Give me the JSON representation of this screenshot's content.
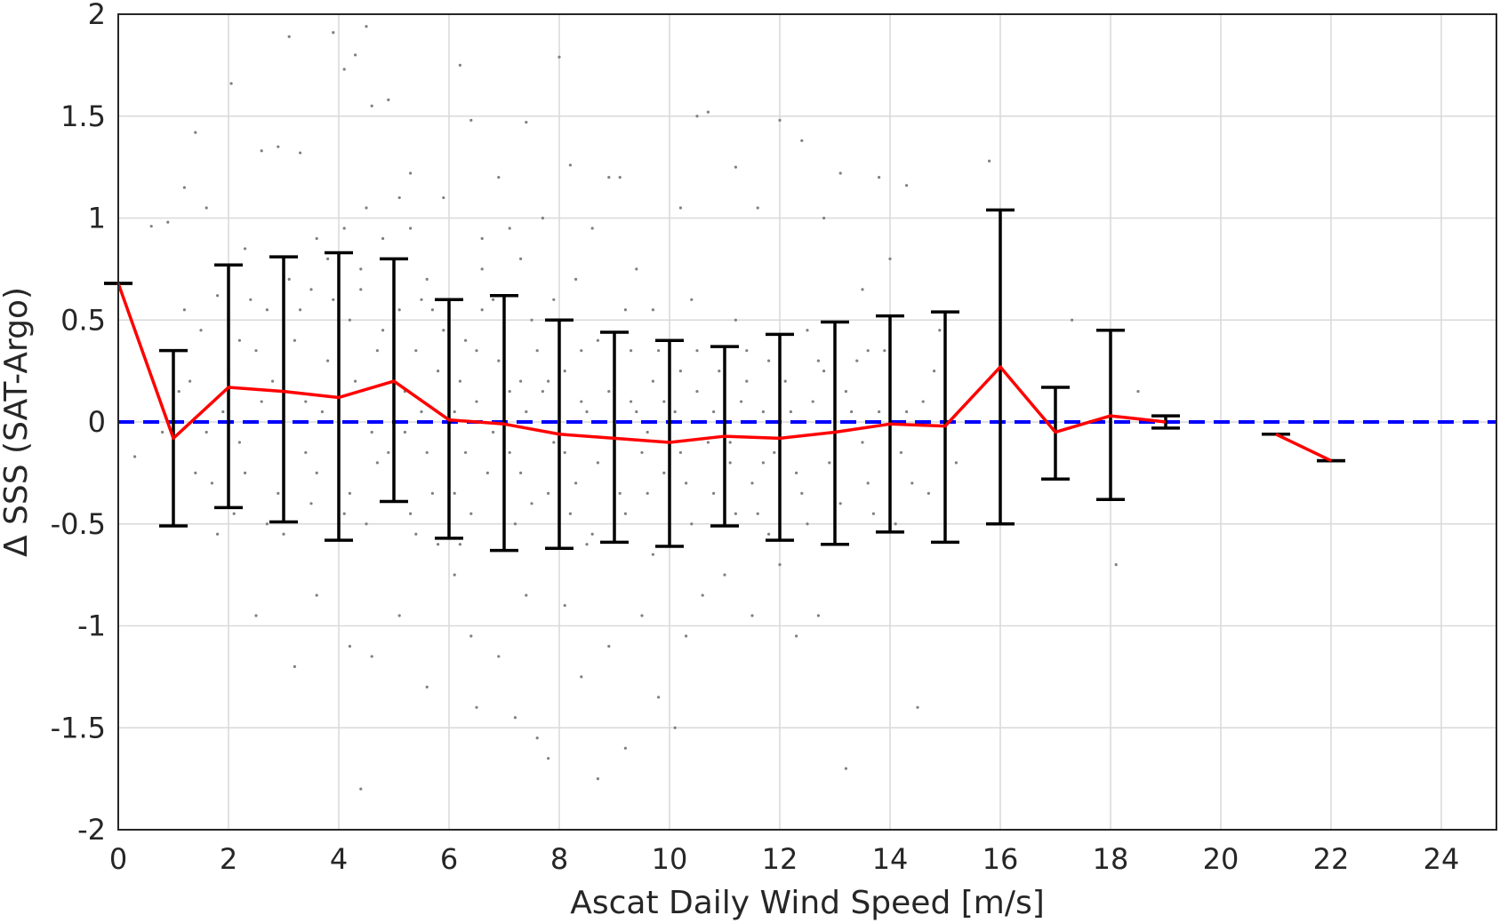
{
  "chart_data": {
    "type": "scatter",
    "xlabel": "Ascat Daily Wind Speed [m/s]",
    "ylabel": "Δ SSS (SAT-Argo)",
    "xlim": [
      0,
      25
    ],
    "ylim": [
      -2,
      2
    ],
    "xticks": [
      "0",
      "2",
      "4",
      "6",
      "8",
      "10",
      "12",
      "14",
      "16",
      "18",
      "20",
      "22",
      "24"
    ],
    "xtick_values": [
      0,
      2,
      4,
      6,
      8,
      10,
      12,
      14,
      16,
      18,
      20,
      22,
      24
    ],
    "yticks": [
      "2",
      "1.5",
      "1",
      "0.5",
      "0",
      "-0.5",
      "-1",
      "-1.5",
      "-2"
    ],
    "ytick_values": [
      2,
      1.5,
      1,
      0.5,
      0,
      -0.5,
      -1,
      -1.5,
      -2
    ],
    "grid": true,
    "reference_line": {
      "y": 0,
      "color": "#0000ff",
      "style": "dashed"
    },
    "scatter_color": "#808080",
    "mean_line_color": "#ff0000",
    "errorbar_color": "#000000",
    "series": [
      {
        "kind": "mean-with-errorbars",
        "segments": [
          [
            [
              0,
              0.68
            ],
            [
              1,
              -0.08
            ],
            [
              2,
              0.17
            ],
            [
              3,
              0.15
            ],
            [
              4,
              0.12
            ],
            [
              5,
              0.2
            ],
            [
              6,
              0.01
            ],
            [
              7,
              -0.01
            ],
            [
              8,
              -0.06
            ],
            [
              9,
              -0.08
            ],
            [
              10,
              -0.1
            ],
            [
              11,
              -0.07
            ],
            [
              12,
              -0.08
            ],
            [
              13,
              -0.05
            ],
            [
              14,
              -0.01
            ],
            [
              15,
              -0.02
            ],
            [
              16,
              0.27
            ],
            [
              17,
              -0.05
            ],
            [
              18,
              0.03
            ],
            [
              19,
              0.0
            ]
          ],
          [
            [
              21,
              -0.06
            ],
            [
              22,
              -0.19
            ]
          ]
        ],
        "errorbars": [
          {
            "x": 0,
            "lo": 0.68,
            "hi": 0.68
          },
          {
            "x": 1,
            "lo": -0.51,
            "hi": 0.35
          },
          {
            "x": 2,
            "lo": -0.42,
            "hi": 0.77
          },
          {
            "x": 3,
            "lo": -0.49,
            "hi": 0.81
          },
          {
            "x": 4,
            "lo": -0.58,
            "hi": 0.83
          },
          {
            "x": 5,
            "lo": -0.39,
            "hi": 0.8
          },
          {
            "x": 6,
            "lo": -0.57,
            "hi": 0.6
          },
          {
            "x": 7,
            "lo": -0.63,
            "hi": 0.62
          },
          {
            "x": 8,
            "lo": -0.62,
            "hi": 0.5
          },
          {
            "x": 9,
            "lo": -0.59,
            "hi": 0.44
          },
          {
            "x": 10,
            "lo": -0.61,
            "hi": 0.4
          },
          {
            "x": 11,
            "lo": -0.51,
            "hi": 0.37
          },
          {
            "x": 12,
            "lo": -0.58,
            "hi": 0.43
          },
          {
            "x": 13,
            "lo": -0.6,
            "hi": 0.49
          },
          {
            "x": 14,
            "lo": -0.54,
            "hi": 0.52
          },
          {
            "x": 15,
            "lo": -0.59,
            "hi": 0.54
          },
          {
            "x": 16,
            "lo": -0.5,
            "hi": 1.04
          },
          {
            "x": 17,
            "lo": -0.28,
            "hi": 0.17
          },
          {
            "x": 18,
            "lo": -0.38,
            "hi": 0.45
          },
          {
            "x": 19,
            "lo": -0.03,
            "hi": 0.03
          },
          {
            "x": 21,
            "lo": -0.06,
            "hi": -0.06
          },
          {
            "x": 22,
            "lo": -0.19,
            "hi": -0.19
          }
        ]
      }
    ],
    "scatter_points": [
      [
        0.3,
        -0.17
      ],
      [
        0.6,
        0.96
      ],
      [
        0.9,
        0.98
      ],
      [
        1.2,
        1.15
      ],
      [
        1.4,
        1.42
      ],
      [
        1.6,
        1.05
      ],
      [
        1.8,
        0.62
      ],
      [
        2.05,
        1.66
      ],
      [
        2.3,
        0.85
      ],
      [
        2.6,
        1.33
      ],
      [
        2.9,
        1.35
      ],
      [
        3.1,
        1.89
      ],
      [
        3.3,
        1.32
      ],
      [
        3.6,
        0.9
      ],
      [
        3.9,
        1.91
      ],
      [
        4.1,
        1.73
      ],
      [
        4.3,
        1.8
      ],
      [
        4.5,
        1.94
      ],
      [
        4.6,
        1.55
      ],
      [
        4.9,
        1.58
      ],
      [
        5.1,
        1.1
      ],
      [
        5.3,
        1.22
      ],
      [
        5.6,
        0.7
      ],
      [
        5.9,
        1.1
      ],
      [
        6.2,
        1.75
      ],
      [
        6.4,
        1.48
      ],
      [
        6.6,
        0.9
      ],
      [
        6.9,
        1.2
      ],
      [
        7.1,
        0.95
      ],
      [
        7.4,
        1.47
      ],
      [
        7.7,
        1.0
      ],
      [
        8.0,
        1.79
      ],
      [
        8.2,
        1.26
      ],
      [
        8.6,
        0.95
      ],
      [
        8.9,
        1.2
      ],
      [
        9.1,
        1.2
      ],
      [
        9.4,
        0.75
      ],
      [
        9.7,
        0.55
      ],
      [
        10.2,
        1.05
      ],
      [
        10.5,
        1.5
      ],
      [
        10.7,
        1.52
      ],
      [
        11.2,
        1.25
      ],
      [
        11.6,
        1.05
      ],
      [
        12.0,
        1.48
      ],
      [
        12.4,
        1.38
      ],
      [
        12.8,
        1.0
      ],
      [
        13.1,
        1.22
      ],
      [
        13.5,
        0.65
      ],
      [
        13.8,
        1.2
      ],
      [
        14.0,
        0.8
      ],
      [
        14.3,
        1.16
      ],
      [
        15.8,
        1.28
      ],
      [
        17.3,
        0.5
      ],
      [
        18.5,
        0.15
      ],
      [
        1.3,
        0.2
      ],
      [
        1.5,
        0.45
      ],
      [
        1.7,
        -0.3
      ],
      [
        2.2,
        -0.1
      ],
      [
        2.5,
        0.35
      ],
      [
        2.7,
        0.55
      ],
      [
        2.9,
        -0.35
      ],
      [
        3.2,
        0.4
      ],
      [
        3.4,
        0.1
      ],
      [
        3.6,
        -0.25
      ],
      [
        3.8,
        0.3
      ],
      [
        4.0,
        -0.2
      ],
      [
        4.2,
        0.5
      ],
      [
        4.4,
        0.65
      ],
      [
        4.6,
        -0.05
      ],
      [
        4.8,
        0.45
      ],
      [
        5.0,
        -0.3
      ],
      [
        5.2,
        0.15
      ],
      [
        5.4,
        0.35
      ],
      [
        5.6,
        -0.15
      ],
      [
        5.8,
        0.25
      ],
      [
        6.1,
        -0.35
      ],
      [
        6.3,
        0.4
      ],
      [
        6.5,
        0.1
      ],
      [
        6.7,
        -0.25
      ],
      [
        6.9,
        0.3
      ],
      [
        7.1,
        -0.15
      ],
      [
        7.3,
        0.2
      ],
      [
        7.5,
        -0.4
      ],
      [
        7.7,
        0.15
      ],
      [
        7.9,
        -0.1
      ],
      [
        8.1,
        0.25
      ],
      [
        8.3,
        -0.3
      ],
      [
        8.5,
        0.05
      ],
      [
        8.7,
        -0.2
      ],
      [
        8.9,
        0.15
      ],
      [
        9.1,
        -0.35
      ],
      [
        9.3,
        0.1
      ],
      [
        9.5,
        -0.15
      ],
      [
        9.7,
        0.2
      ],
      [
        9.9,
        -0.25
      ],
      [
        10.1,
        0.05
      ],
      [
        10.3,
        -0.3
      ],
      [
        10.5,
        0.15
      ],
      [
        10.7,
        -0.1
      ],
      [
        10.9,
        0.25
      ],
      [
        11.1,
        -0.2
      ],
      [
        11.3,
        0.1
      ],
      [
        11.5,
        -0.3
      ],
      [
        11.7,
        0.05
      ],
      [
        11.9,
        -0.15
      ],
      [
        12.1,
        0.2
      ],
      [
        12.3,
        -0.25
      ],
      [
        12.6,
        0.1
      ],
      [
        12.9,
        -0.2
      ],
      [
        13.2,
        0.15
      ],
      [
        13.5,
        -0.1
      ],
      [
        13.8,
        0.05
      ],
      [
        14.2,
        -0.15
      ],
      [
        14.6,
        0.1
      ],
      [
        1.4,
        -0.25
      ],
      [
        1.9,
        0.05
      ],
      [
        2.1,
        -0.45
      ],
      [
        2.4,
        0.6
      ],
      [
        2.8,
        0.2
      ],
      [
        3.0,
        -0.55
      ],
      [
        3.3,
        0.55
      ],
      [
        3.5,
        -0.4
      ],
      [
        3.7,
        0.05
      ],
      [
        3.9,
        0.6
      ],
      [
        4.1,
        -0.45
      ],
      [
        4.3,
        0.2
      ],
      [
        4.5,
        -0.5
      ],
      [
        4.7,
        0.35
      ],
      [
        4.9,
        -0.15
      ],
      [
        5.1,
        0.55
      ],
      [
        5.3,
        -0.45
      ],
      [
        5.5,
        0.05
      ],
      [
        5.7,
        -0.35
      ],
      [
        5.9,
        0.45
      ],
      [
        6.0,
        -0.55
      ],
      [
        6.2,
        0.2
      ],
      [
        6.4,
        -0.45
      ],
      [
        6.6,
        0.55
      ],
      [
        6.8,
        -0.05
      ],
      [
        7.0,
        0.45
      ],
      [
        7.2,
        -0.5
      ],
      [
        7.4,
        0.05
      ],
      [
        7.6,
        0.35
      ],
      [
        7.8,
        -0.35
      ],
      [
        8.0,
        0.05
      ],
      [
        8.2,
        -0.45
      ],
      [
        8.4,
        0.35
      ],
      [
        8.6,
        -0.55
      ],
      [
        8.8,
        0.0
      ],
      [
        9.0,
        0.3
      ],
      [
        9.2,
        -0.45
      ],
      [
        9.4,
        0.05
      ],
      [
        9.6,
        -0.35
      ],
      [
        9.8,
        0.35
      ],
      [
        10.0,
        -0.45
      ],
      [
        10.2,
        0.25
      ],
      [
        10.4,
        -0.5
      ],
      [
        10.6,
        0.0
      ],
      [
        10.8,
        -0.35
      ],
      [
        11.0,
        0.3
      ],
      [
        11.2,
        -0.45
      ],
      [
        11.4,
        0.2
      ],
      [
        11.6,
        -0.45
      ],
      [
        11.8,
        0.3
      ],
      [
        12.0,
        -0.35
      ],
      [
        12.2,
        0.05
      ],
      [
        12.5,
        -0.5
      ],
      [
        12.8,
        0.25
      ],
      [
        13.1,
        -0.4
      ],
      [
        13.4,
        0.3
      ],
      [
        13.7,
        -0.45
      ],
      [
        14.0,
        0.2
      ],
      [
        14.4,
        -0.3
      ],
      [
        14.8,
        0.25
      ],
      [
        15.2,
        -0.2
      ],
      [
        1.2,
        0.55
      ],
      [
        1.6,
        -0.05
      ],
      [
        2.0,
        0.25
      ],
      [
        2.3,
        -0.25
      ],
      [
        2.6,
        0.1
      ],
      [
        3.1,
        0.7
      ],
      [
        3.4,
        -0.15
      ],
      [
        3.8,
        0.8
      ],
      [
        4.0,
        0.1
      ],
      [
        4.2,
        -0.35
      ],
      [
        4.4,
        0.75
      ],
      [
        4.7,
        -0.2
      ],
      [
        5.0,
        0.75
      ],
      [
        5.2,
        -0.05
      ],
      [
        5.4,
        -0.55
      ],
      [
        5.7,
        0.55
      ],
      [
        6.1,
        0.05
      ],
      [
        6.3,
        -0.15
      ],
      [
        6.5,
        0.35
      ],
      [
        6.8,
        0.6
      ],
      [
        7.1,
        0.15
      ],
      [
        7.3,
        -0.25
      ],
      [
        7.5,
        0.5
      ],
      [
        7.8,
        0.2
      ],
      [
        8.1,
        -0.15
      ],
      [
        8.4,
        0.1
      ],
      [
        8.7,
        0.4
      ],
      [
        9.0,
        -0.1
      ],
      [
        9.3,
        0.35
      ],
      [
        9.6,
        -0.05
      ],
      [
        9.9,
        0.1
      ],
      [
        10.2,
        -0.15
      ],
      [
        10.5,
        0.35
      ],
      [
        10.8,
        0.05
      ],
      [
        11.1,
        -0.1
      ],
      [
        11.4,
        0.35
      ],
      [
        11.7,
        -0.2
      ],
      [
        12.0,
        0.05
      ],
      [
        12.4,
        -0.35
      ],
      [
        12.7,
        0.3
      ],
      [
        13.0,
        -0.1
      ],
      [
        13.3,
        0.05
      ],
      [
        13.6,
        -0.3
      ],
      [
        13.9,
        0.35
      ],
      [
        14.3,
        0.05
      ],
      [
        14.7,
        -0.35
      ],
      [
        2.5,
        -0.95
      ],
      [
        3.2,
        -1.2
      ],
      [
        3.6,
        -0.85
      ],
      [
        4.2,
        -1.1
      ],
      [
        4.4,
        -1.8
      ],
      [
        4.6,
        -1.15
      ],
      [
        5.1,
        -0.95
      ],
      [
        5.6,
        -1.3
      ],
      [
        6.1,
        -0.75
      ],
      [
        6.4,
        -1.05
      ],
      [
        6.5,
        -1.4
      ],
      [
        6.9,
        -1.15
      ],
      [
        7.2,
        -1.45
      ],
      [
        7.4,
        -0.85
      ],
      [
        7.6,
        -1.55
      ],
      [
        7.8,
        -1.65
      ],
      [
        8.1,
        -0.9
      ],
      [
        8.4,
        -1.25
      ],
      [
        8.7,
        -1.75
      ],
      [
        8.9,
        -1.1
      ],
      [
        9.2,
        -1.6
      ],
      [
        9.5,
        -0.95
      ],
      [
        9.8,
        -1.35
      ],
      [
        10.1,
        -1.5
      ],
      [
        10.3,
        -1.05
      ],
      [
        10.6,
        -0.85
      ],
      [
        11.0,
        -0.75
      ],
      [
        11.5,
        -0.95
      ],
      [
        12.0,
        -0.7
      ],
      [
        12.3,
        -1.05
      ],
      [
        12.7,
        -0.95
      ],
      [
        13.2,
        -1.7
      ],
      [
        14.5,
        -1.4
      ],
      [
        18.1,
        -0.7
      ],
      [
        0.8,
        -0.05
      ],
      [
        1.1,
        0.15
      ],
      [
        1.8,
        -0.55
      ],
      [
        2.2,
        0.4
      ],
      [
        2.7,
        -0.5
      ],
      [
        3.5,
        0.65
      ],
      [
        4.1,
        0.95
      ],
      [
        4.5,
        1.05
      ],
      [
        4.8,
        0.9
      ],
      [
        5.3,
        0.95
      ],
      [
        5.5,
        0.6
      ],
      [
        5.8,
        -0.6
      ],
      [
        6.2,
        -0.6
      ],
      [
        6.6,
        0.75
      ],
      [
        7.0,
        -0.6
      ],
      [
        7.3,
        0.8
      ],
      [
        7.9,
        0.6
      ],
      [
        8.3,
        0.7
      ],
      [
        8.5,
        -0.6
      ],
      [
        9.2,
        0.55
      ],
      [
        9.7,
        -0.65
      ],
      [
        10.4,
        0.6
      ],
      [
        11.2,
        0.5
      ],
      [
        11.8,
        -0.55
      ],
      [
        12.5,
        0.45
      ],
      [
        13.0,
        0.45
      ],
      [
        13.6,
        0.35
      ],
      [
        14.1,
        -0.5
      ],
      [
        14.9,
        0.45
      ]
    ]
  }
}
